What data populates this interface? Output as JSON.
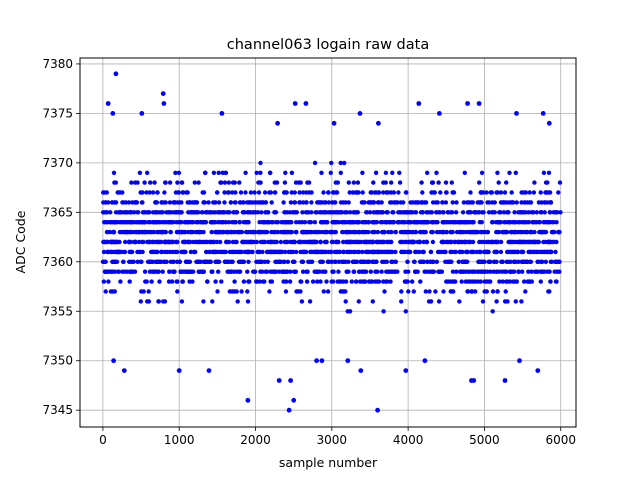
{
  "chart_data": {
    "type": "scatter",
    "title": "channel063 logain raw data",
    "xlabel": "sample number",
    "ylabel": "ADC Code",
    "xlim": [
      -300,
      6200
    ],
    "ylim": [
      7343.3,
      7380.6
    ],
    "x_ticks": [
      0,
      1000,
      2000,
      3000,
      4000,
      5000,
      6000
    ],
    "y_ticks": [
      7345,
      7350,
      7355,
      7360,
      7365,
      7370,
      7375,
      7380
    ],
    "grid": true,
    "marker_color": "#0000ff",
    "n_samples": 6000,
    "dense_band": [
      7353,
      7370
    ],
    "series": [
      {
        "name": "",
        "note_points": "sparse outliers outside the dense band",
        "outliers": [
          [
            170,
            7379
          ],
          [
            70,
            7376
          ],
          [
            130,
            7375
          ],
          [
            510,
            7375
          ],
          [
            790,
            7377
          ],
          [
            800,
            7376
          ],
          [
            1560,
            7375
          ],
          [
            2290,
            7374
          ],
          [
            2520,
            7376
          ],
          [
            2660,
            7376
          ],
          [
            3030,
            7374
          ],
          [
            3370,
            7375
          ],
          [
            3610,
            7374
          ],
          [
            4140,
            7376
          ],
          [
            4410,
            7375
          ],
          [
            4780,
            7376
          ],
          [
            4930,
            7376
          ],
          [
            5420,
            7375
          ],
          [
            5770,
            7375
          ],
          [
            5850,
            7374
          ],
          [
            140,
            7350
          ],
          [
            280,
            7349
          ],
          [
            1000,
            7349
          ],
          [
            1390,
            7349
          ],
          [
            1900,
            7346
          ],
          [
            2310,
            7348
          ],
          [
            2440,
            7345
          ],
          [
            2460,
            7348
          ],
          [
            2500,
            7346
          ],
          [
            2800,
            7350
          ],
          [
            2870,
            7350
          ],
          [
            3210,
            7350
          ],
          [
            3600,
            7345
          ],
          [
            3380,
            7349
          ],
          [
            3970,
            7349
          ],
          [
            4220,
            7350
          ],
          [
            4830,
            7348
          ],
          [
            4860,
            7348
          ],
          [
            5270,
            7348
          ],
          [
            5460,
            7350
          ],
          [
            5700,
            7349
          ]
        ]
      }
    ]
  }
}
